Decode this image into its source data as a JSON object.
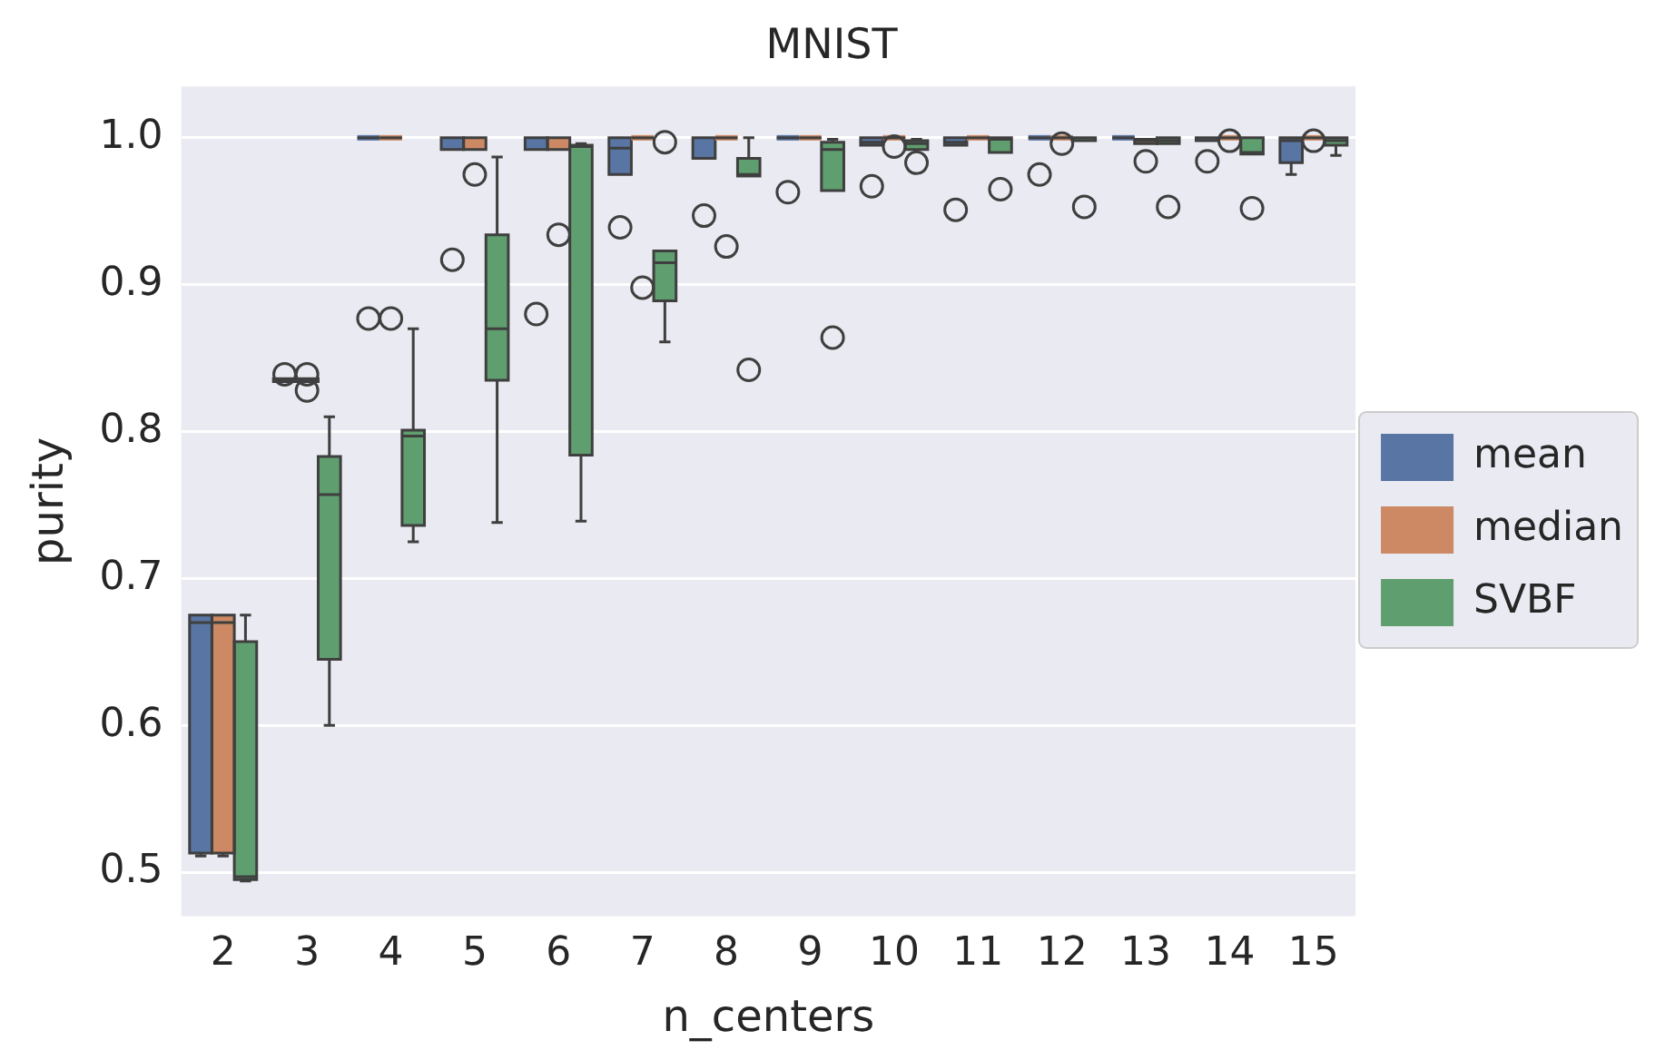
{
  "chart_data": {
    "type": "box",
    "title": "MNIST",
    "xlabel": "n_centers",
    "ylabel": "purity",
    "categories": [
      "2",
      "3",
      "4",
      "5",
      "6",
      "7",
      "8",
      "9",
      "10",
      "11",
      "12",
      "13",
      "14",
      "15"
    ],
    "ylim": [
      0.47,
      1.035
    ],
    "yticks": [
      0.5,
      0.6,
      0.7,
      0.8,
      0.9,
      {
        "value": 1,
        "label": "1.0"
      }
    ],
    "grid": "y",
    "legend": "right",
    "series": [
      {
        "name": "mean",
        "color": "#5975a4",
        "boxes": [
          {
            "low": 0.511,
            "q1": 0.513,
            "median": 0.67,
            "q3": 0.675,
            "high": 0.675
          },
          {
            "low": 0.834,
            "q1": 0.834,
            "median": 0.835,
            "q3": 0.836,
            "high": 0.836,
            "outliers": [
              0.839
            ]
          },
          {
            "low": 1,
            "q1": 1,
            "median": 1,
            "q3": 1,
            "high": 1,
            "outliers": [
              0.877
            ]
          },
          {
            "low": 0.992,
            "q1": 0.992,
            "median": 1,
            "q3": 1,
            "high": 1,
            "outliers": [
              0.917
            ]
          },
          {
            "low": 0.992,
            "q1": 0.992,
            "median": 1,
            "q3": 1,
            "high": 1,
            "outliers": [
              0.88
            ]
          },
          {
            "low": 0.975,
            "q1": 0.975,
            "median": 0.993,
            "q3": 1,
            "high": 1,
            "outliers": [
              0.939
            ]
          },
          {
            "low": 0.986,
            "q1": 0.986,
            "median": 1,
            "q3": 1,
            "high": 1,
            "outliers": [
              0.947
            ]
          },
          {
            "low": 1,
            "q1": 1,
            "median": 1,
            "q3": 1,
            "high": 1,
            "outliers": [
              0.963
            ]
          },
          {
            "low": 0.995,
            "q1": 0.995,
            "median": 0.997,
            "q3": 1,
            "high": 1,
            "outliers": [
              0.967
            ]
          },
          {
            "low": 0.995,
            "q1": 0.995,
            "median": 0.997,
            "q3": 1,
            "high": 1,
            "outliers": [
              0.951
            ]
          },
          {
            "low": 1,
            "q1": 1,
            "median": 1,
            "q3": 1,
            "high": 1,
            "outliers": [
              0.975
            ]
          },
          {
            "low": 1,
            "q1": 1,
            "median": 1,
            "q3": 1,
            "high": 1
          },
          {
            "low": 0.998,
            "q1": 0.998,
            "median": 1,
            "q3": 1,
            "high": 1,
            "outliers": [
              0.984
            ]
          },
          {
            "low": 0.975,
            "q1": 0.983,
            "median": 0.998,
            "q3": 1,
            "high": 1
          }
        ]
      },
      {
        "name": "median",
        "color": "#cc8963",
        "boxes": [
          {
            "low": 0.511,
            "q1": 0.513,
            "median": 0.67,
            "q3": 0.675,
            "high": 0.675
          },
          {
            "low": 0.834,
            "q1": 0.834,
            "median": 0.835,
            "q3": 0.836,
            "high": 0.836,
            "outliers": [
              0.839,
              0.828
            ]
          },
          {
            "low": 1,
            "q1": 1,
            "median": 1,
            "q3": 1,
            "high": 1,
            "outliers": [
              0.877
            ]
          },
          {
            "low": 0.992,
            "q1": 0.992,
            "median": 1,
            "q3": 1,
            "high": 1,
            "outliers": [
              0.975
            ]
          },
          {
            "low": 0.992,
            "q1": 0.992,
            "median": 1,
            "q3": 1,
            "high": 1,
            "outliers": [
              0.934
            ]
          },
          {
            "low": 1,
            "q1": 1,
            "median": 1,
            "q3": 1,
            "high": 1,
            "outliers": [
              0.898
            ]
          },
          {
            "low": 1,
            "q1": 1,
            "median": 1,
            "q3": 1,
            "high": 1,
            "outliers": [
              0.926
            ]
          },
          {
            "low": 1,
            "q1": 1,
            "median": 1,
            "q3": 1,
            "high": 1
          },
          {
            "low": 1,
            "q1": 1,
            "median": 1,
            "q3": 1,
            "high": 1,
            "outliers": [
              0.994
            ]
          },
          {
            "low": 1,
            "q1": 1,
            "median": 1,
            "q3": 1,
            "high": 1
          },
          {
            "low": 1,
            "q1": 1,
            "median": 1,
            "q3": 1,
            "high": 1,
            "outliers": [
              0.996
            ]
          },
          {
            "low": 0.996,
            "q1": 0.996,
            "median": 0.998,
            "q3": 0.999,
            "high": 0.999,
            "outliers": [
              0.984
            ]
          },
          {
            "low": 1,
            "q1": 1,
            "median": 1,
            "q3": 1,
            "high": 1,
            "outliers": [
              0.998
            ]
          },
          {
            "low": 1,
            "q1": 1,
            "median": 1,
            "q3": 1,
            "high": 1,
            "outliers": [
              0.998
            ]
          }
        ]
      },
      {
        "name": "SVBF",
        "color": "#5f9e6e",
        "boxes": [
          {
            "low": 0.494,
            "q1": 0.495,
            "median": 0.497,
            "q3": 0.657,
            "high": 0.675
          },
          {
            "low": 0.6,
            "q1": 0.645,
            "median": 0.757,
            "q3": 0.783,
            "high": 0.81
          },
          {
            "low": 0.725,
            "q1": 0.736,
            "median": 0.797,
            "q3": 0.801,
            "high": 0.87
          },
          {
            "low": 0.738,
            "q1": 0.835,
            "median": 0.87,
            "q3": 0.934,
            "high": 0.987
          },
          {
            "low": 0.739,
            "q1": 0.784,
            "median": 0.994,
            "q3": 0.995,
            "high": 0.996
          },
          {
            "low": 0.861,
            "q1": 0.889,
            "median": 0.915,
            "q3": 0.923,
            "high": 0.923,
            "outliers": [
              0.997
            ]
          },
          {
            "low": 0.974,
            "q1": 0.974,
            "median": 0.975,
            "q3": 0.986,
            "high": 1,
            "outliers": [
              0.842
            ]
          },
          {
            "low": 0.964,
            "q1": 0.964,
            "median": 0.992,
            "q3": 0.997,
            "high": 0.999,
            "outliers": [
              0.864
            ]
          },
          {
            "low": 0.992,
            "q1": 0.992,
            "median": 0.996,
            "q3": 0.998,
            "high": 0.999,
            "outliers": [
              0.983
            ]
          },
          {
            "low": 0.99,
            "q1": 0.99,
            "median": 0.999,
            "q3": 1,
            "high": 1,
            "outliers": [
              0.965
            ]
          },
          {
            "low": 0.998,
            "q1": 0.998,
            "median": 1,
            "q3": 1,
            "high": 1,
            "outliers": [
              0.953
            ]
          },
          {
            "low": 0.996,
            "q1": 0.996,
            "median": 0.998,
            "q3": 1,
            "high": 1,
            "outliers": [
              0.953
            ]
          },
          {
            "low": 0.989,
            "q1": 0.989,
            "median": 0.99,
            "q3": 1,
            "high": 1,
            "outliers": [
              0.952
            ]
          },
          {
            "low": 0.988,
            "q1": 0.995,
            "median": 0.998,
            "q3": 1,
            "high": 1
          }
        ]
      }
    ]
  }
}
